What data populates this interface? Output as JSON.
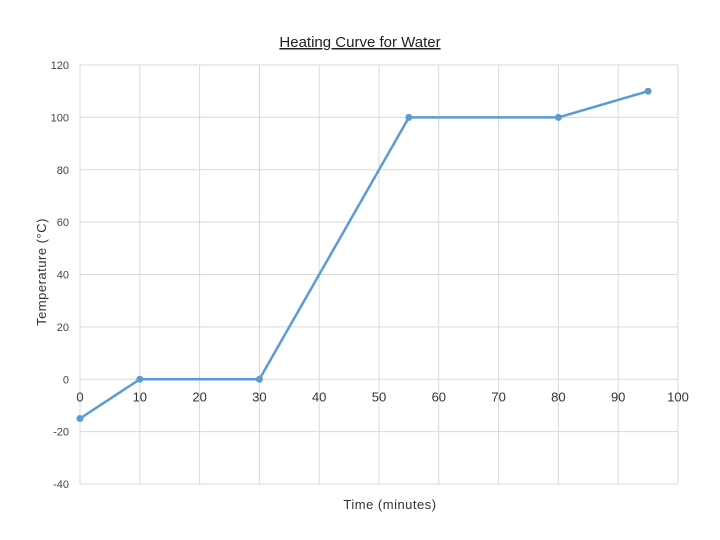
{
  "chart_data": {
    "type": "scatter",
    "title": "Heating Curve for Water",
    "xlabel": "Time (minutes)",
    "ylabel": "Temperature (°C)",
    "xlim": [
      0,
      100
    ],
    "ylim": [
      -40,
      120
    ],
    "xticks": [
      0,
      10,
      20,
      30,
      40,
      50,
      60,
      70,
      80,
      90,
      100
    ],
    "yticks": [
      -40,
      -20,
      0,
      20,
      40,
      60,
      80,
      100,
      120
    ],
    "grid": true,
    "legend": "none",
    "series": [
      {
        "x": [
          0,
          10,
          30,
          55,
          80,
          95
        ],
        "y": [
          -15,
          0,
          0,
          100,
          100,
          110
        ],
        "color": "#5b9bd5",
        "lines": true,
        "markers": true
      }
    ]
  }
}
